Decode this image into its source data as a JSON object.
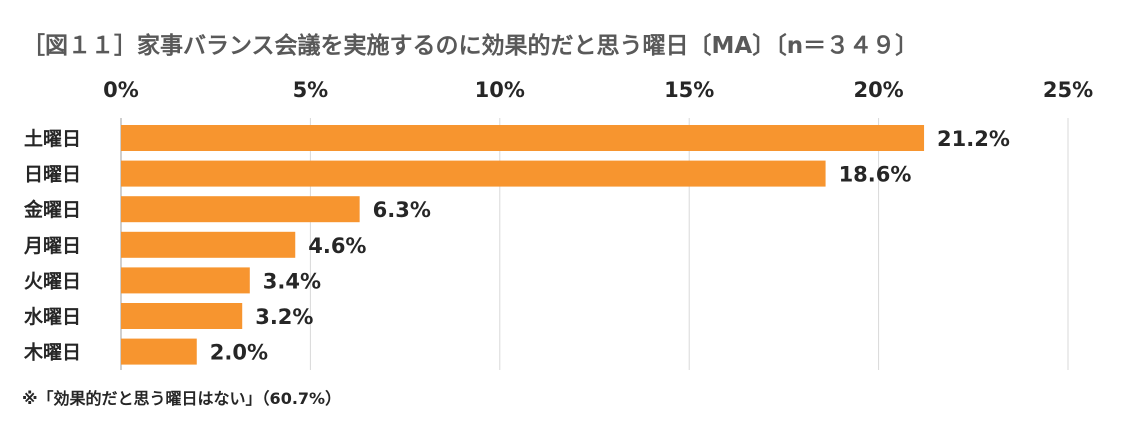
{
  "chart_data": {
    "type": "bar",
    "orientation": "horizontal",
    "title": "［図１１］家事バランス会議を実施するのに効果的だと思う曜日〔MA〕〔n＝３４９〕",
    "categories": [
      "土曜日",
      "日曜日",
      "金曜日",
      "月曜日",
      "火曜日",
      "水曜日",
      "木曜日"
    ],
    "values": [
      21.2,
      18.6,
      6.3,
      4.6,
      3.4,
      3.2,
      2.0
    ],
    "data_labels": [
      "21.2%",
      "18.6%",
      "6.3%",
      "4.6%",
      "3.4%",
      "3.2%",
      "2.0%"
    ],
    "xlim": [
      0,
      25
    ],
    "x_ticks": [
      0,
      5,
      10,
      15,
      20,
      25
    ],
    "x_tick_labels": [
      "0%",
      "5%",
      "10%",
      "15%",
      "20%",
      "25%"
    ],
    "x_axis_position": "top",
    "grid": true,
    "legend": "none",
    "bar_color": "#F7952F",
    "note": "※「効果的だと思う曜日はない」（60.7%）"
  }
}
